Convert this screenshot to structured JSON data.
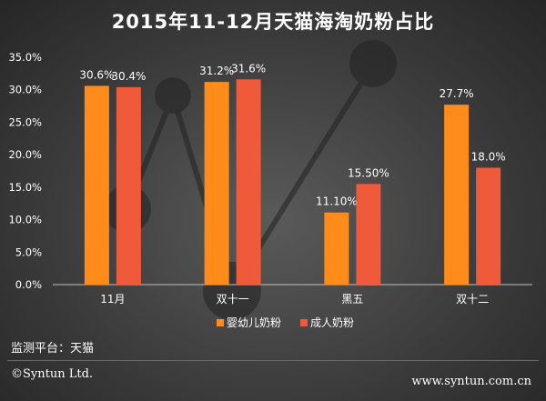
{
  "chart_data": {
    "type": "bar",
    "title": "2015年11-12月天猫海淘奶粉占比",
    "categories": [
      "11月",
      "双十一",
      "黑五",
      "双十二"
    ],
    "series": [
      {
        "name": "婴幼儿奶粉",
        "color": "#ff8c1a",
        "values": [
          30.6,
          31.2,
          11.1,
          27.7
        ],
        "labels": [
          "30.6%",
          "31.2%",
          "11.10%",
          "27.7%"
        ]
      },
      {
        "name": "成人奶粉",
        "color": "#ef5a3b",
        "values": [
          30.4,
          31.6,
          15.5,
          18.0
        ],
        "labels": [
          "30.4%",
          "31.6%",
          "15.50%",
          "18.0%"
        ]
      }
    ],
    "ylim": [
      0,
      35
    ],
    "yticks": [
      0,
      5,
      10,
      15,
      20,
      25,
      30,
      35
    ],
    "ytick_labels": [
      "0.0%",
      "5.0%",
      "10.0%",
      "15.0%",
      "20.0%",
      "25.0%",
      "30.0%",
      "35.0%"
    ],
    "legend_position": "bottom",
    "grid": false
  },
  "footer": {
    "source": "监测平台：天猫",
    "copyright": "©Syntun Ltd.",
    "website": "www.syntun.com.cn"
  }
}
